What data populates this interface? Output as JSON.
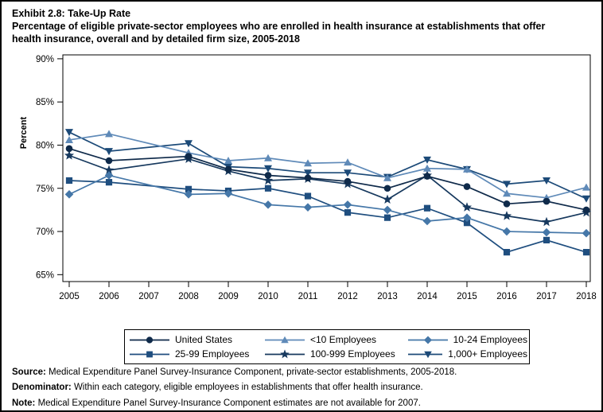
{
  "title": {
    "line1": "Exhibit 2.8: Take-Up Rate",
    "line2": "Percentage of eligible private-sector employees who are enrolled in health insurance at establishments that offer",
    "line3": "health insurance, overall and by detailed firm size, 2005-2018"
  },
  "chart_data": {
    "type": "line",
    "title": "Exhibit 2.8: Take-Up Rate",
    "subtitle": "Percentage of eligible private-sector employees who are enrolled in health insurance at establishments that offer health insurance, overall and by detailed firm size, 2005-2018",
    "xlabel": "",
    "ylabel": "Percent",
    "x": [
      2005,
      2006,
      2007,
      2008,
      2009,
      2010,
      2011,
      2012,
      2013,
      2014,
      2015,
      2016,
      2017,
      2018
    ],
    "x_tick_labels": [
      "2005",
      "2006",
      "2007",
      "2008",
      "2009",
      "2010",
      "2011",
      "2012",
      "2013",
      "2014",
      "2015",
      "2016",
      "2017",
      "2018"
    ],
    "y_tick_values": [
      90,
      85,
      80,
      75,
      70,
      65
    ],
    "y_tick_labels": [
      "90%",
      "85%",
      "80%",
      "75%",
      "70%",
      "65%"
    ],
    "ylim": [
      65,
      90
    ],
    "grid": false,
    "legend_position": "bottom",
    "missing_years": [
      2007
    ],
    "series": [
      {
        "name": "United States",
        "marker": "circle",
        "color": "#0f2a4a",
        "values": [
          79.6,
          78.2,
          null,
          78.7,
          77.2,
          76.5,
          76.2,
          75.8,
          75.0,
          76.4,
          75.2,
          73.2,
          73.5,
          72.5
        ]
      },
      {
        "name": "<10 Employees",
        "marker": "triangle-up",
        "color": "#5f8ab8",
        "values": [
          80.6,
          81.3,
          null,
          79.1,
          78.2,
          78.5,
          77.9,
          78.0,
          76.2,
          77.3,
          77.2,
          74.4,
          73.9,
          75.1
        ]
      },
      {
        "name": "10-24 Employees",
        "marker": "diamond",
        "color": "#4577a8",
        "values": [
          74.3,
          76.5,
          null,
          74.3,
          74.4,
          73.1,
          72.8,
          73.1,
          72.5,
          71.2,
          71.6,
          70.0,
          69.9,
          69.8
        ]
      },
      {
        "name": "25-99 Employees",
        "marker": "square",
        "color": "#1f4e7f",
        "values": [
          75.9,
          75.7,
          null,
          74.9,
          74.7,
          75.0,
          74.1,
          72.2,
          71.6,
          72.7,
          71.0,
          67.6,
          69.0,
          67.6
        ]
      },
      {
        "name": "100-999 Employees",
        "marker": "star",
        "color": "#17395e",
        "values": [
          78.8,
          77.1,
          null,
          78.4,
          77.0,
          75.9,
          76.1,
          75.5,
          73.7,
          76.5,
          72.8,
          71.8,
          71.1,
          72.2
        ]
      },
      {
        "name": "1,000+ Employees",
        "marker": "triangle-down",
        "color": "#1c4a78",
        "values": [
          81.5,
          79.3,
          null,
          80.2,
          77.5,
          77.3,
          76.8,
          76.8,
          76.3,
          78.3,
          77.2,
          75.5,
          75.9,
          73.8
        ]
      }
    ]
  },
  "footer": {
    "source_label": "Source:",
    "source_text": " Medical Expenditure Panel Survey-Insurance Component, private-sector establishments, 2005-2018.",
    "denominator_label": "Denominator:",
    "denominator_text": " Within each category, eligible employees in establishments that offer health insurance.",
    "note_label": "Note:",
    "note_text": " Medical Expenditure Panel Survey-Insurance Component estimates are not available for 2007."
  }
}
